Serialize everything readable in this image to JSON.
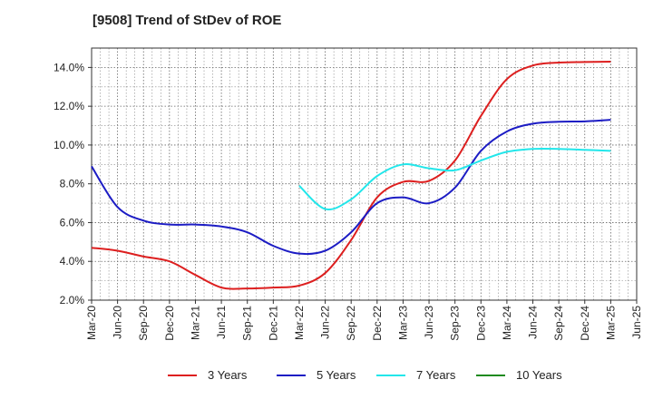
{
  "chart_data": {
    "type": "line",
    "title": "[9508]  Trend of StDev of ROE",
    "xlabel": "",
    "ylabel": "",
    "x_ticks": [
      "Mar-20",
      "Jun-20",
      "Sep-20",
      "Dec-20",
      "Mar-21",
      "Jun-21",
      "Sep-21",
      "Dec-21",
      "Mar-22",
      "Jun-22",
      "Sep-22",
      "Dec-22",
      "Mar-23",
      "Jun-23",
      "Sep-23",
      "Dec-23",
      "Mar-24",
      "Jun-24",
      "Sep-24",
      "Dec-24",
      "Mar-25",
      "Jun-25"
    ],
    "y_ticks": [
      "2.0%",
      "4.0%",
      "6.0%",
      "8.0%",
      "10.0%",
      "12.0%",
      "14.0%"
    ],
    "ylim": [
      2.0,
      15.0
    ],
    "grid": true,
    "legend_position": "bottom",
    "series": [
      {
        "name": "3 Years",
        "color": "#dd1f1f",
        "x": [
          "Mar-20",
          "Jun-20",
          "Sep-20",
          "Dec-20",
          "Mar-21",
          "Jun-21",
          "Sep-21",
          "Dec-21",
          "Mar-22",
          "Jun-22",
          "Sep-22",
          "Dec-22",
          "Mar-23",
          "Jun-23",
          "Sep-23",
          "Dec-23",
          "Mar-24",
          "Jun-24",
          "Sep-24",
          "Dec-24",
          "Mar-25"
        ],
        "values": [
          4.7,
          4.55,
          4.25,
          4.0,
          3.3,
          2.65,
          2.6,
          2.65,
          2.75,
          3.4,
          5.1,
          7.3,
          8.1,
          8.15,
          9.2,
          11.5,
          13.4,
          14.1,
          14.25,
          14.28,
          14.3
        ]
      },
      {
        "name": "5 Years",
        "color": "#1c1cc4",
        "x": [
          "Mar-20",
          "Jun-20",
          "Sep-20",
          "Dec-20",
          "Mar-21",
          "Jun-21",
          "Sep-21",
          "Dec-21",
          "Mar-22",
          "Jun-22",
          "Sep-22",
          "Dec-22",
          "Mar-23",
          "Jun-23",
          "Sep-23",
          "Dec-23",
          "Mar-24",
          "Jun-24",
          "Sep-24",
          "Dec-24",
          "Mar-25"
        ],
        "values": [
          8.9,
          6.8,
          6.1,
          5.9,
          5.9,
          5.8,
          5.5,
          4.8,
          4.4,
          4.55,
          5.5,
          7.0,
          7.3,
          7.0,
          7.8,
          9.7,
          10.7,
          11.1,
          11.2,
          11.22,
          11.3
        ]
      },
      {
        "name": "7 Years",
        "color": "#22e6ea",
        "x": [
          "Mar-22",
          "Jun-22",
          "Sep-22",
          "Dec-22",
          "Mar-23",
          "Jun-23",
          "Sep-23",
          "Dec-23",
          "Mar-24",
          "Jun-24",
          "Sep-24",
          "Dec-24",
          "Mar-25"
        ],
        "values": [
          7.9,
          6.7,
          7.2,
          8.4,
          9.0,
          8.8,
          8.7,
          9.2,
          9.65,
          9.8,
          9.8,
          9.75,
          9.7
        ]
      },
      {
        "name": "10 Years",
        "color": "#1f8a1f",
        "x": [],
        "values": []
      }
    ]
  }
}
